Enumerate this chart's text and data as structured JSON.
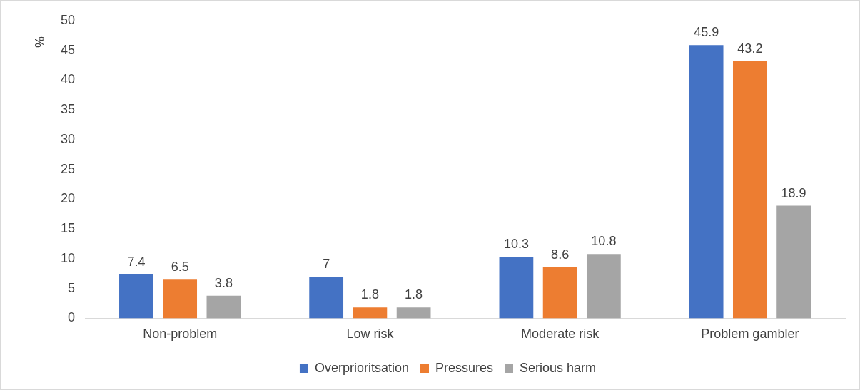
{
  "chart_data": {
    "type": "bar",
    "ylabel": "%",
    "categories": [
      "Non-problem",
      "Low risk",
      "Moderate risk",
      "Problem gambler"
    ],
    "series": [
      {
        "name": "Overprioritsation",
        "color": "#4472c4",
        "values": [
          7.4,
          7,
          10.3,
          45.9
        ]
      },
      {
        "name": "Pressures",
        "color": "#ed7d31",
        "values": [
          6.5,
          1.8,
          8.6,
          43.2
        ]
      },
      {
        "name": "Serious harm",
        "color": "#a5a5a5",
        "values": [
          3.8,
          1.8,
          10.8,
          18.9
        ]
      }
    ],
    "ylim": [
      0,
      50
    ],
    "yticks": [
      0,
      5,
      10,
      15,
      20,
      25,
      30,
      35,
      40,
      45,
      50
    ],
    "grid": false,
    "legend": "bottom",
    "data_labels": true
  }
}
